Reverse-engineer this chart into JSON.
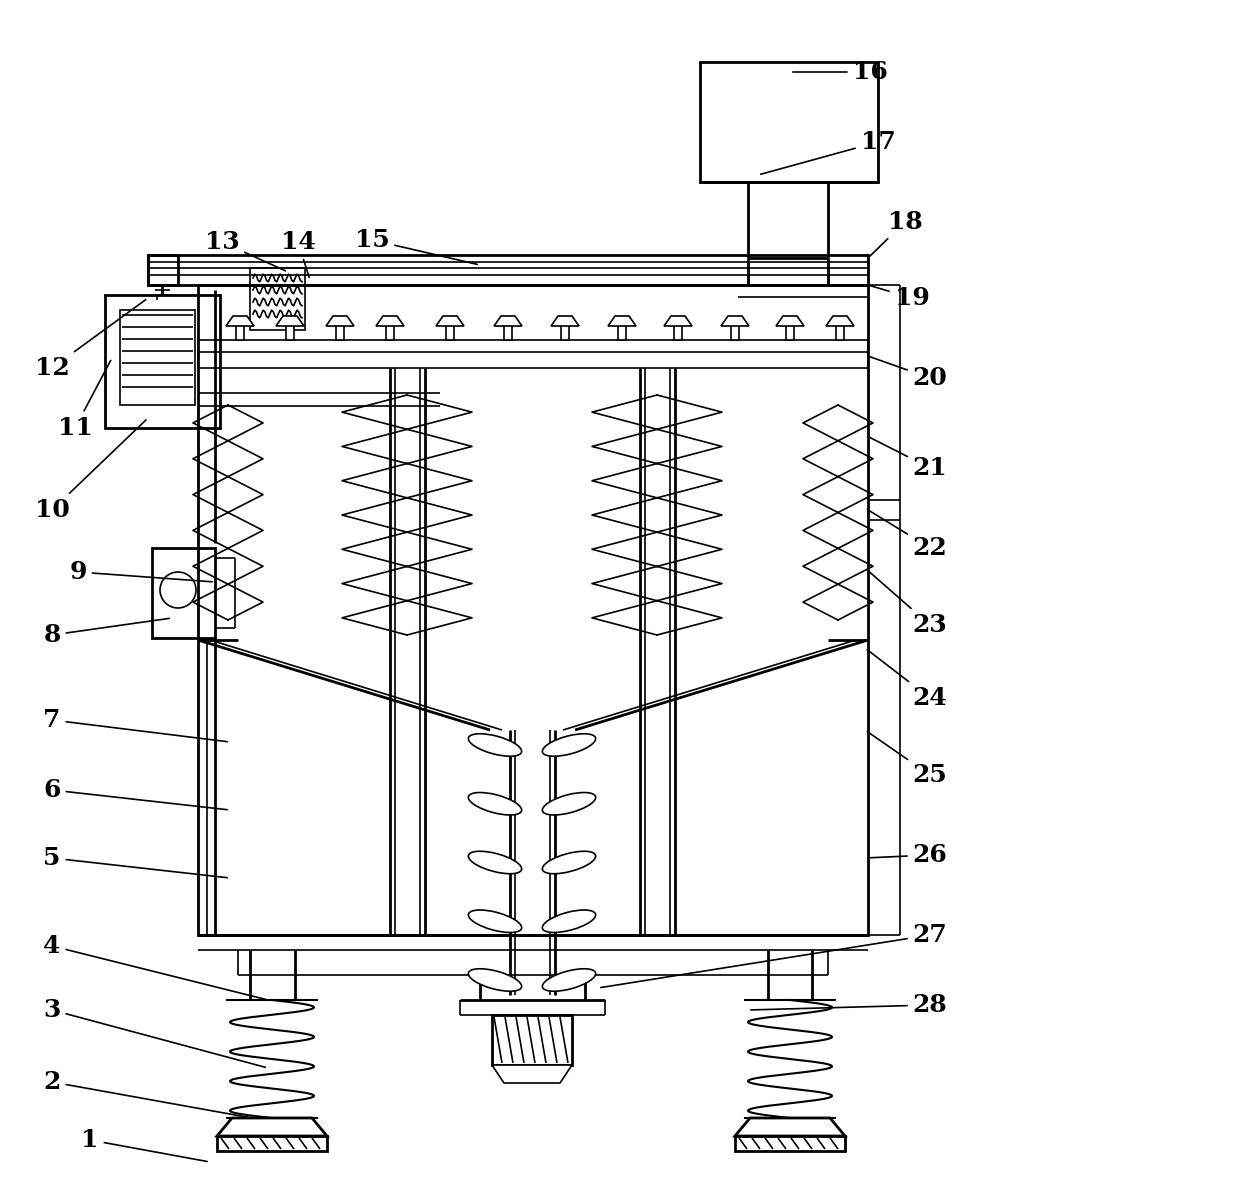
{
  "bg_color": "#ffffff",
  "line_color": "#000000",
  "lw_main": 2.0,
  "lw_thin": 1.2,
  "label_fontsize": 18,
  "labels_data": [
    [
      "1",
      210,
      1162,
      90,
      1140
    ],
    [
      "2",
      252,
      1118,
      52,
      1082
    ],
    [
      "3",
      268,
      1068,
      52,
      1010
    ],
    [
      "4",
      268,
      1000,
      52,
      946
    ],
    [
      "5",
      230,
      878,
      52,
      858
    ],
    [
      "6",
      230,
      810,
      52,
      790
    ],
    [
      "7",
      230,
      742,
      52,
      720
    ],
    [
      "8",
      172,
      618,
      52,
      635
    ],
    [
      "9",
      215,
      582,
      78,
      572
    ],
    [
      "10",
      148,
      418,
      52,
      510
    ],
    [
      "11",
      112,
      358,
      75,
      428
    ],
    [
      "12",
      148,
      298,
      52,
      368
    ],
    [
      "13",
      288,
      272,
      222,
      242
    ],
    [
      "14",
      310,
      280,
      298,
      242
    ],
    [
      "15",
      480,
      265,
      372,
      240
    ],
    [
      "16",
      790,
      72,
      870,
      72
    ],
    [
      "17",
      758,
      175,
      878,
      142
    ],
    [
      "18",
      868,
      258,
      905,
      222
    ],
    [
      "19",
      868,
      285,
      912,
      298
    ],
    [
      "20",
      865,
      355,
      930,
      378
    ],
    [
      "21",
      865,
      435,
      930,
      468
    ],
    [
      "22",
      865,
      508,
      930,
      548
    ],
    [
      "23",
      865,
      568,
      930,
      625
    ],
    [
      "24",
      865,
      648,
      930,
      698
    ],
    [
      "25",
      865,
      730,
      930,
      775
    ],
    [
      "26",
      865,
      858,
      930,
      855
    ],
    [
      "27",
      598,
      988,
      930,
      935
    ],
    [
      "28",
      748,
      1010,
      930,
      1005
    ]
  ]
}
